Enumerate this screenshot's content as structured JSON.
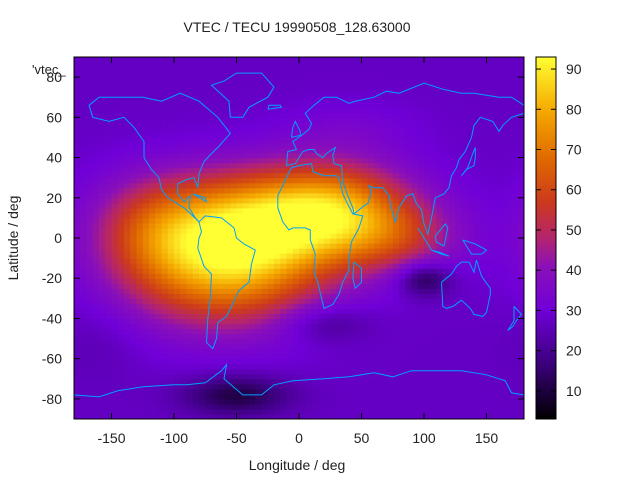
{
  "chart_data": {
    "type": "heatmap",
    "title": "VTEC / TECU 19990508_128.63000",
    "xlabel": "Longitude / deg",
    "ylabel": "Latitude / deg",
    "plot_key_label": "'vtec_",
    "xlim": [
      -180,
      180
    ],
    "ylim": [
      -90,
      90
    ],
    "xticks": [
      -150,
      -100,
      -50,
      0,
      50,
      100,
      150
    ],
    "yticks": [
      -80,
      -60,
      -40,
      -20,
      0,
      20,
      40,
      60,
      80
    ],
    "colorbar": {
      "range": [
        3,
        93
      ],
      "ticks": [
        10,
        20,
        30,
        40,
        50,
        60,
        70,
        80,
        90
      ],
      "palette": [
        [
          0.0,
          "#000000"
        ],
        [
          0.15,
          "#3a007a"
        ],
        [
          0.3,
          "#7000d8"
        ],
        [
          0.42,
          "#8a10b8"
        ],
        [
          0.5,
          "#b4246e"
        ],
        [
          0.6,
          "#cc3a1c"
        ],
        [
          0.72,
          "#e06a00"
        ],
        [
          0.85,
          "#f5a800"
        ],
        [
          1.0,
          "#ffff33"
        ]
      ]
    },
    "background_vtec": 27,
    "features": [
      {
        "lon": -60,
        "lat": -12,
        "amp": 52,
        "sx": 55,
        "sy": 22
      },
      {
        "lon": -20,
        "lat": 10,
        "amp": 38,
        "sx": 70,
        "sy": 18
      },
      {
        "lon": 30,
        "lat": 15,
        "amp": 28,
        "sx": 40,
        "sy": 16
      },
      {
        "lon": 80,
        "lat": 0,
        "amp": 16,
        "sx": 35,
        "sy": 12
      },
      {
        "lon": -120,
        "lat": 5,
        "amp": 12,
        "sx": 30,
        "sy": 18
      },
      {
        "lon": 100,
        "lat": -20,
        "amp": -18,
        "sx": 15,
        "sy": 6
      },
      {
        "lon": 20,
        "lat": -42,
        "amp": -10,
        "sx": 25,
        "sy": 7
      },
      {
        "lon": -50,
        "lat": -78,
        "amp": -17,
        "sx": 30,
        "sy": 7
      },
      {
        "lon": 40,
        "lat": 55,
        "amp": 5,
        "sx": 40,
        "sy": 10
      },
      {
        "lon": -160,
        "lat": -50,
        "amp": -3,
        "sx": 25,
        "sy": 15
      }
    ],
    "coastline_color": "#00a0ff",
    "grid": false
  }
}
